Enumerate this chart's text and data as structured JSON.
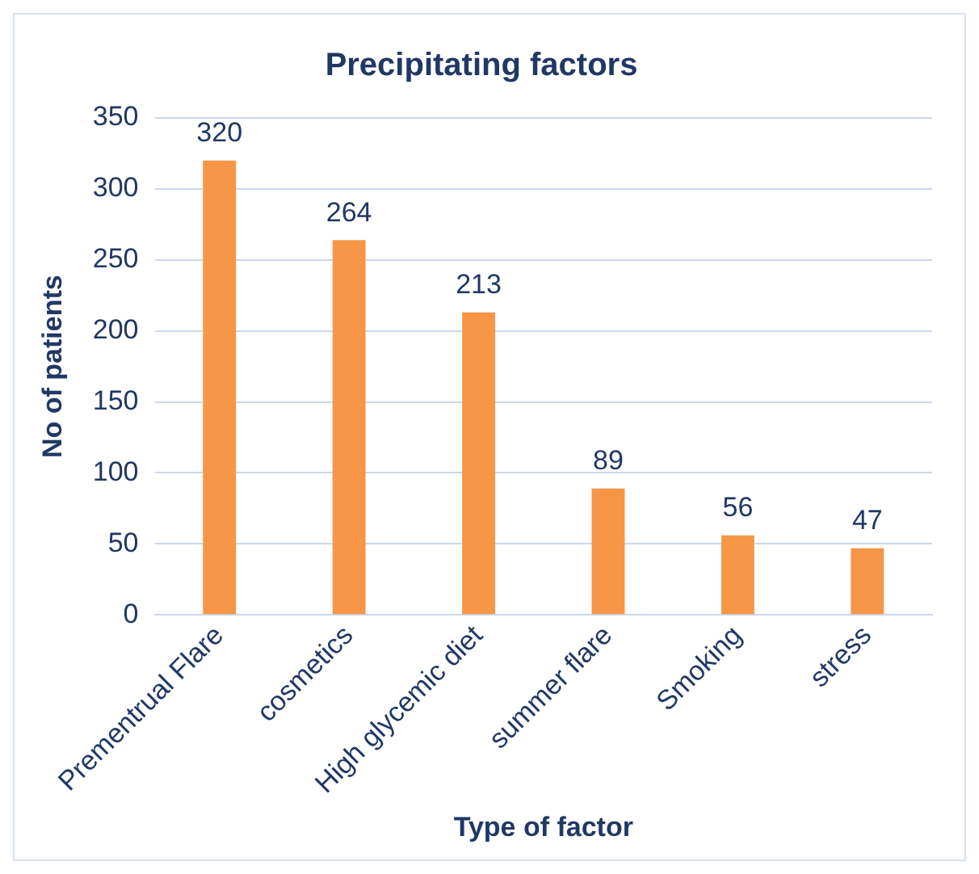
{
  "chart_data": {
    "type": "bar",
    "title": "Precipitating factors",
    "xlabel": "Type of factor",
    "ylabel": "No of patients",
    "categories": [
      "Prementrual Flare",
      "cosmetics",
      "High glycemic diet",
      "summer flare",
      "Smoking",
      "stress"
    ],
    "values": [
      320,
      264,
      213,
      89,
      56,
      47
    ],
    "color": "#f79646",
    "ylim": [
      0,
      350
    ],
    "yticks": [
      0,
      50,
      100,
      150,
      200,
      250,
      300,
      350
    ],
    "grid": "y",
    "data_labels": true,
    "legend": false
  }
}
